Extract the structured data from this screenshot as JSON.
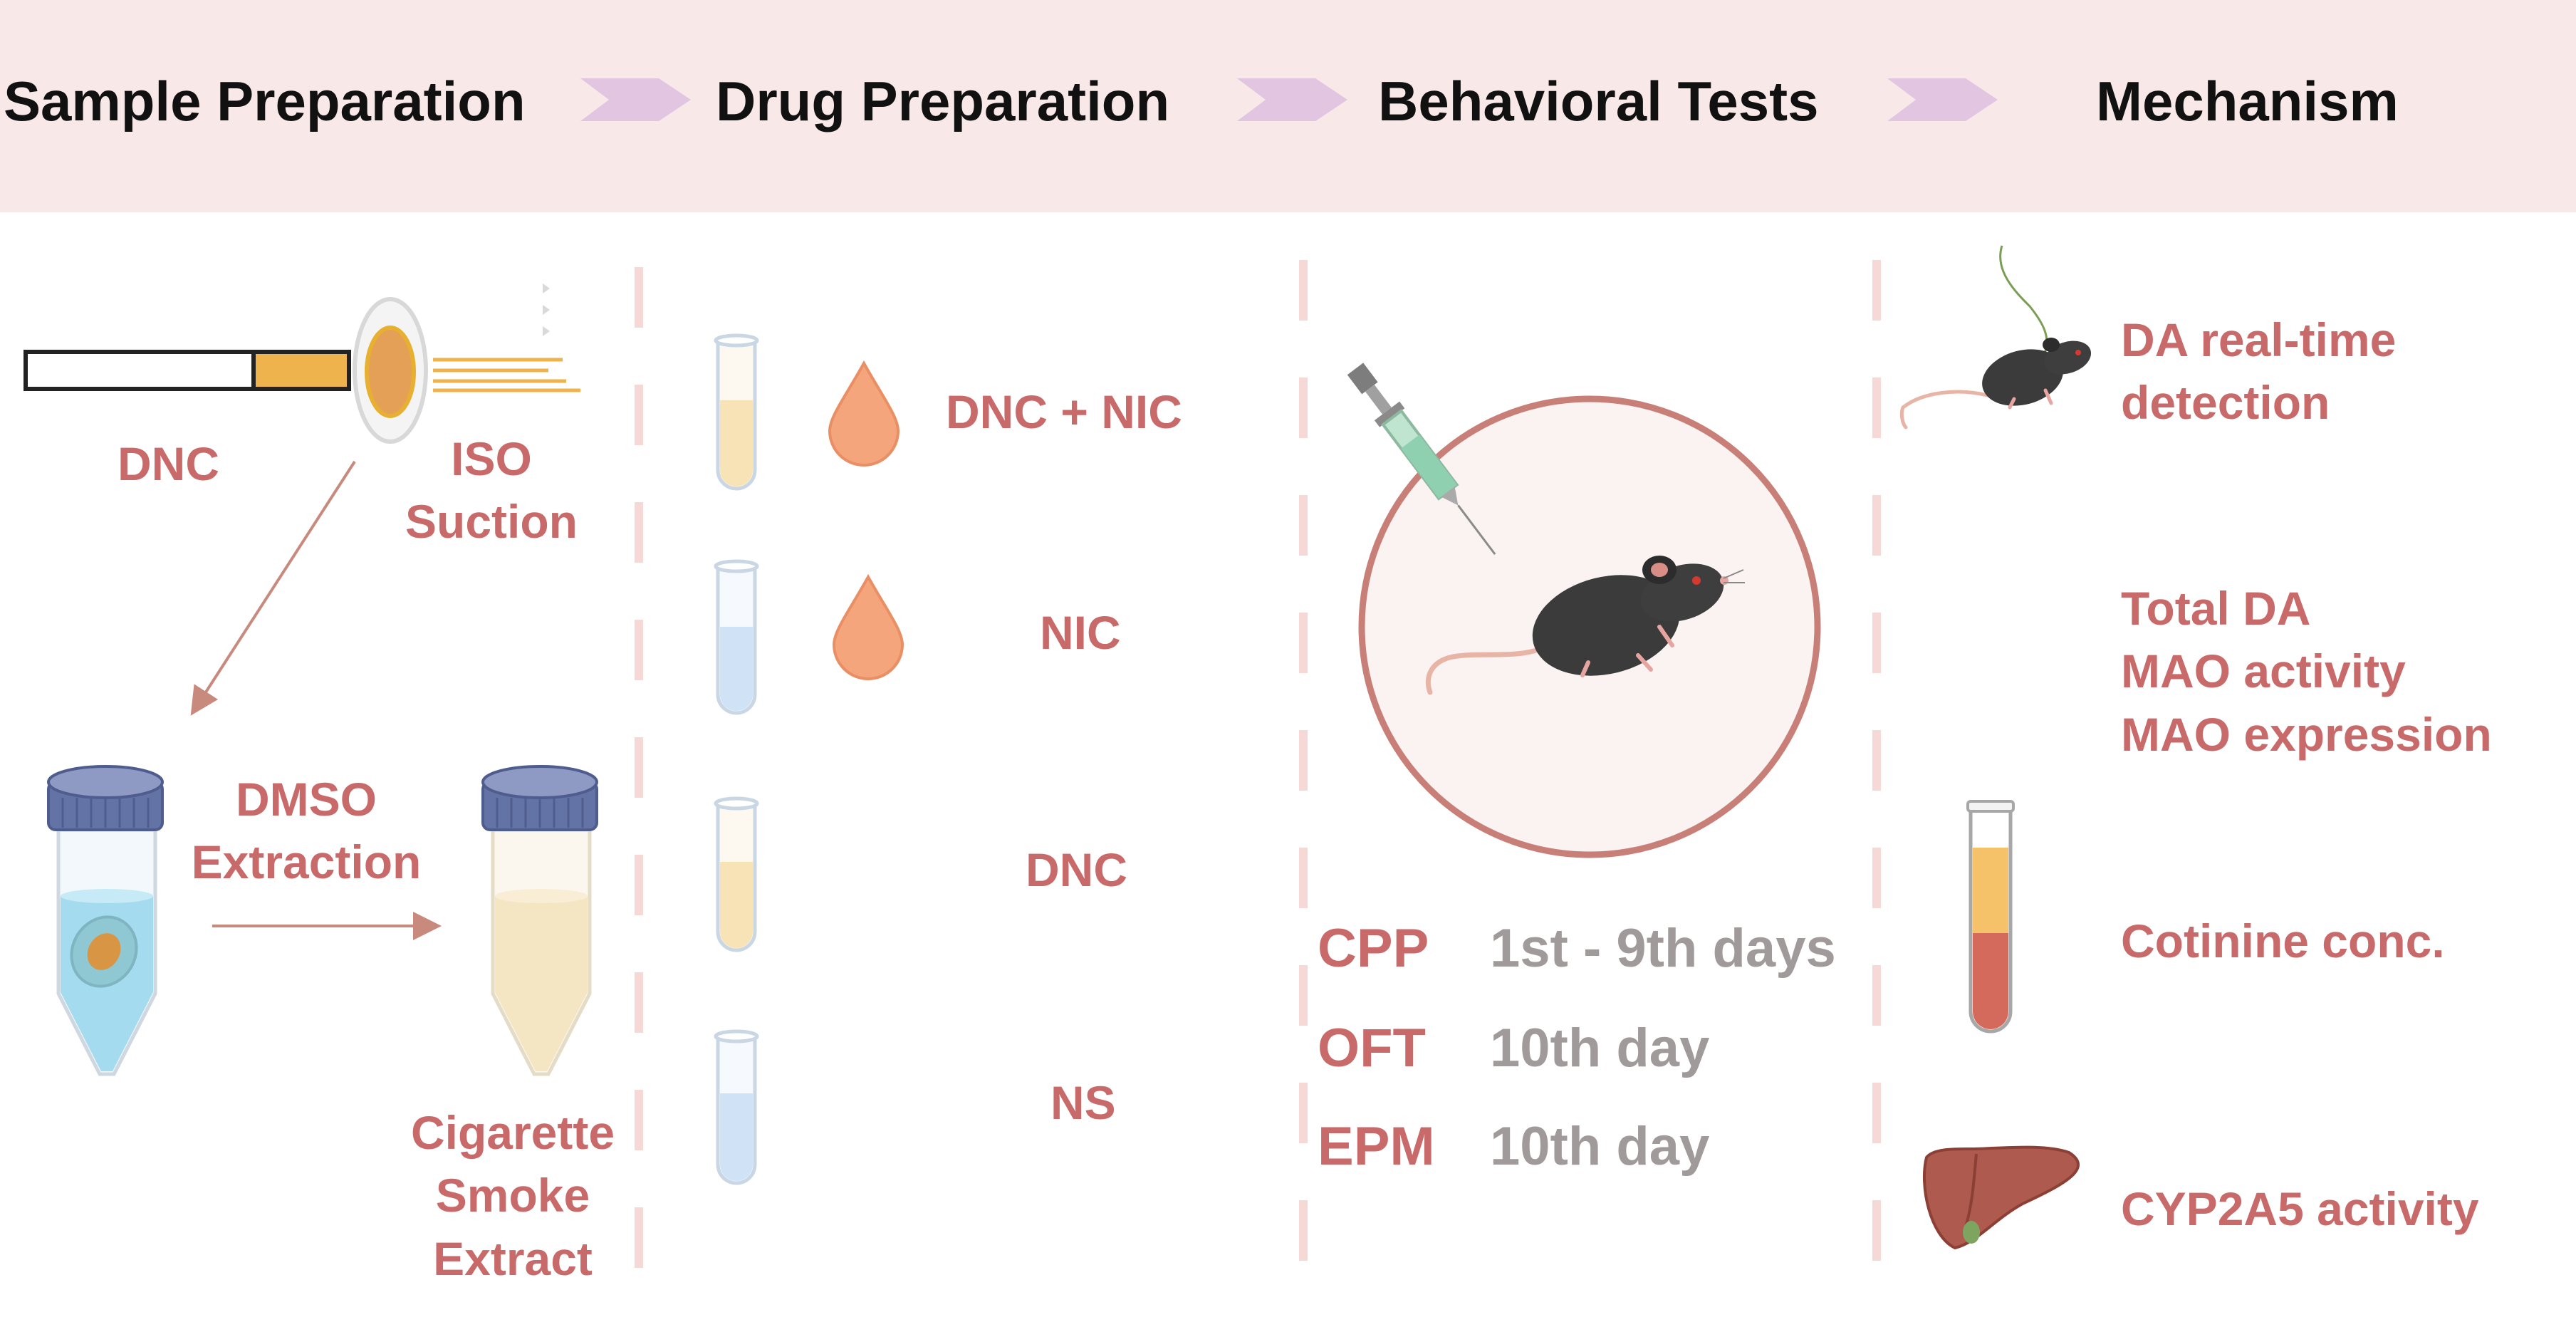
{
  "colors": {
    "accent": "#c86a6a",
    "header_band": "#f8e8e7",
    "chevron": "#e2c6e1",
    "divider": "#f6d9d7",
    "muted": "#a09a9a"
  },
  "header": {
    "steps": [
      "Sample Preparation",
      "Drug Preparation",
      "Behavioral Tests",
      "Mechanism"
    ]
  },
  "sample": {
    "dnc": "DNC",
    "iso_suction": "ISO\nSuction",
    "dmso_extraction": "DMSO\nExtraction",
    "cse": "Cigarette\nSmoke\nExtract"
  },
  "drugs": [
    "DNC + NIC",
    "NIC",
    "DNC",
    "NS"
  ],
  "tests": [
    {
      "code": "CPP",
      "days": "1st - 9th days"
    },
    {
      "code": "OFT",
      "days": "10th day"
    },
    {
      "code": "EPM",
      "days": "10th day"
    }
  ],
  "mechanism": {
    "da_detection": "DA real-time\ndetection",
    "brain_assays": "Total DA\nMAO activity\nMAO expression",
    "cotinine": "Cotinine conc.",
    "cyp": "CYP2A5 activity"
  },
  "icons": [
    "cigarette-icon",
    "filter-pad-icon",
    "centrifuge-tube-icon",
    "test-tube-icon",
    "drop-icon",
    "syringe-icon",
    "mouse-icon",
    "blood-tube-icon",
    "liver-icon"
  ]
}
